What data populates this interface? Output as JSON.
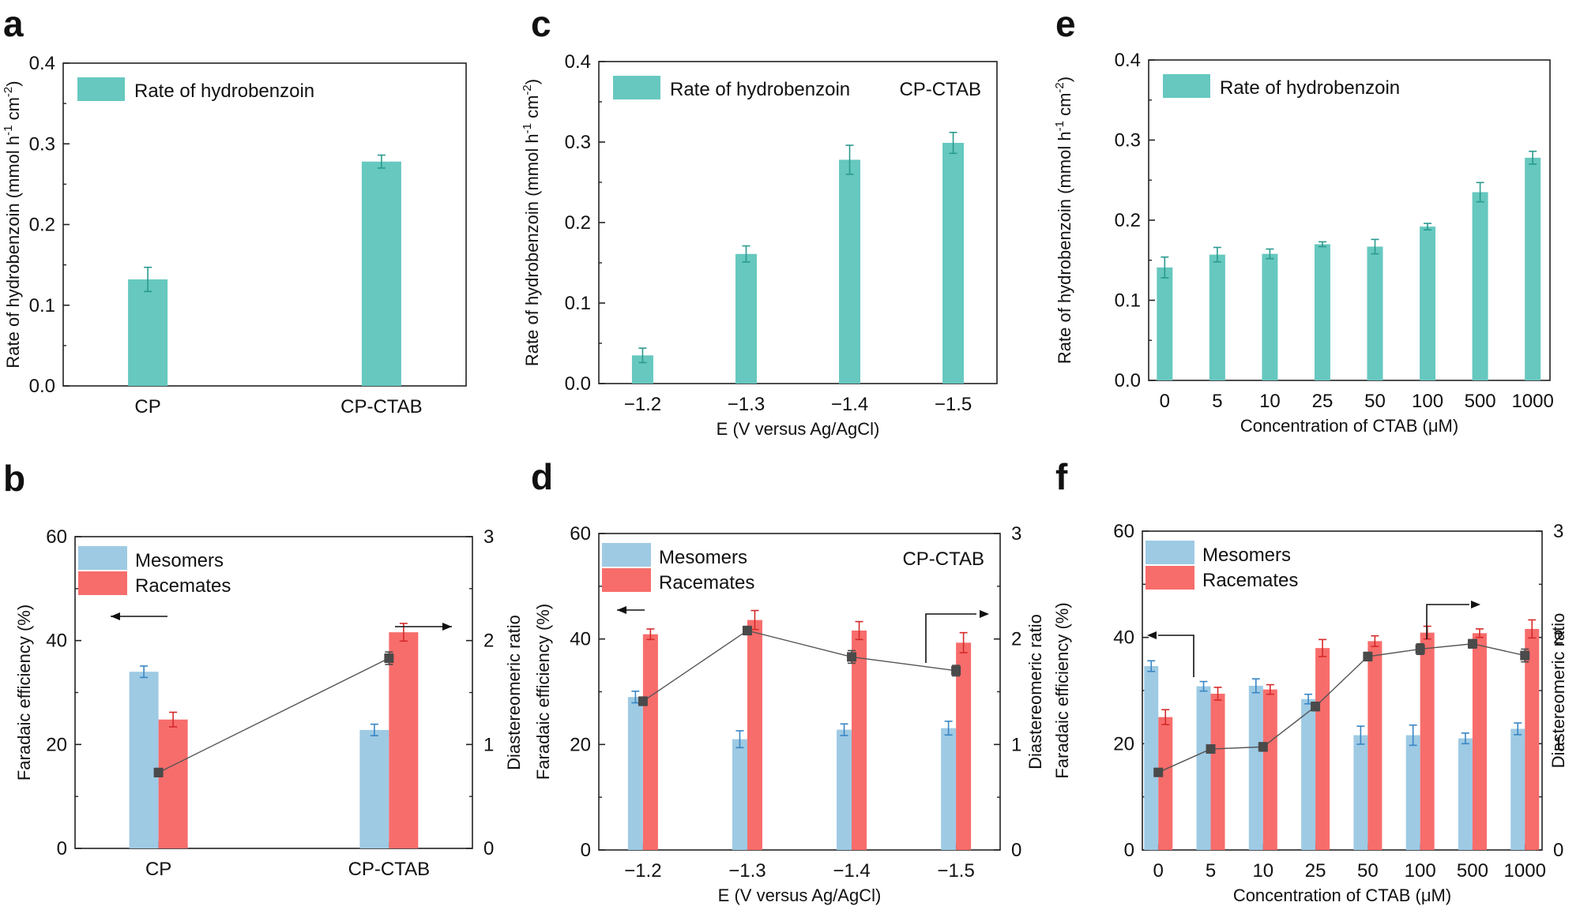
{
  "colors": {
    "teal": "#66c8bf",
    "teal_err": "#2a9a8e",
    "mesomer": "#9ecae4",
    "mesomer_err": "#3a86c4",
    "racemate": "#f76d6b",
    "racemate_err": "#d42a2a",
    "ratio_line": "#555555",
    "ratio_marker": "#4a4a4a"
  },
  "chart_data": [
    {
      "id": "a",
      "panel_label": "a",
      "type": "bar",
      "categories": [
        "CP",
        "CP-CTAB"
      ],
      "series": [
        {
          "name": "Rate of hydrobenzoin",
          "values": [
            0.132,
            0.278
          ],
          "errors": [
            0.015,
            0.008
          ]
        }
      ],
      "xlabel": "",
      "ylabel": "Rate of hydrobenzoin (mmol h⁻¹ cm⁻²)",
      "ylim": [
        0,
        0.4
      ],
      "yticks": [
        "0.0",
        "0.1",
        "0.2",
        "0.3",
        "0.4"
      ],
      "note": ""
    },
    {
      "id": "c",
      "panel_label": "c",
      "type": "bar",
      "categories": [
        "−1.2",
        "−1.3",
        "−1.4",
        "−1.5"
      ],
      "series": [
        {
          "name": "Rate of hydrobenzoin",
          "values": [
            0.035,
            0.161,
            0.278,
            0.299
          ],
          "errors": [
            0.009,
            0.01,
            0.018,
            0.013
          ]
        }
      ],
      "xlabel": "E (V versus Ag/AgCl)",
      "ylabel": "Rate of hydrobenzoin (mmol h⁻¹ cm⁻²)",
      "ylim": [
        0,
        0.4
      ],
      "yticks": [
        "0.0",
        "0.1",
        "0.2",
        "0.3",
        "0.4"
      ],
      "note": "CP-CTAB"
    },
    {
      "id": "e",
      "panel_label": "e",
      "type": "bar",
      "categories": [
        "0",
        "5",
        "10",
        "25",
        "50",
        "100",
        "500",
        "1000"
      ],
      "series": [
        {
          "name": "Rate of hydrobenzoin",
          "values": [
            0.141,
            0.157,
            0.158,
            0.17,
            0.167,
            0.192,
            0.235,
            0.278
          ],
          "errors": [
            0.013,
            0.009,
            0.006,
            0.003,
            0.009,
            0.004,
            0.012,
            0.008
          ]
        }
      ],
      "xlabel": "Concentration of CTAB (μM)",
      "ylabel": "Rate of hydrobenzoin (mmol h⁻¹ cm⁻²)",
      "ylim": [
        0,
        0.4
      ],
      "yticks": [
        "0.0",
        "0.1",
        "0.2",
        "0.3",
        "0.4"
      ],
      "note": ""
    },
    {
      "id": "b",
      "panel_label": "b",
      "type": "bar",
      "categories": [
        "CP",
        "CP-CTAB"
      ],
      "series": [
        {
          "name": "Mesomers",
          "values": [
            34.0,
            22.8
          ],
          "errors": [
            1.1,
            1.1
          ]
        },
        {
          "name": "Racemates",
          "values": [
            24.8,
            41.6
          ],
          "errors": [
            1.4,
            1.7
          ]
        }
      ],
      "ratio": {
        "name": "Diastereomeric ratio",
        "values": [
          0.73,
          1.83
        ],
        "errors": [
          0.04,
          0.06
        ]
      },
      "xlabel": "",
      "ylabel": "Faradaic efficiency (%)",
      "y2label": "Diastereomeric ratio",
      "ylim": [
        0,
        60
      ],
      "y2lim": [
        0,
        3
      ],
      "yticks": [
        "0",
        "20",
        "40",
        "60"
      ],
      "y2ticks": [
        "0",
        "1",
        "2",
        "3"
      ],
      "note": ""
    },
    {
      "id": "d",
      "panel_label": "d",
      "type": "bar",
      "categories": [
        "−1.2",
        "−1.3",
        "−1.4",
        "−1.5"
      ],
      "series": [
        {
          "name": "Mesomers",
          "values": [
            29.0,
            21.0,
            22.8,
            23.1
          ],
          "errors": [
            1.1,
            1.6,
            1.1,
            1.3
          ]
        },
        {
          "name": "Racemates",
          "values": [
            40.9,
            43.6,
            41.6,
            39.3
          ],
          "errors": [
            1.0,
            1.8,
            1.7,
            1.9
          ]
        }
      ],
      "ratio": {
        "name": "Diastereomeric ratio",
        "values": [
          1.41,
          2.08,
          1.83,
          1.7
        ],
        "errors": [
          0.04,
          0.04,
          0.06,
          0.05
        ]
      },
      "xlabel": "E (V versus Ag/AgCl)",
      "ylabel": "Faradaic efficiency (%)",
      "y2label": "Diastereomeric ratio",
      "ylim": [
        0,
        60
      ],
      "y2lim": [
        0,
        3
      ],
      "yticks": [
        "0",
        "20",
        "40",
        "60"
      ],
      "y2ticks": [
        "0",
        "1",
        "2",
        "3"
      ],
      "note": "CP-CTAB"
    },
    {
      "id": "f",
      "panel_label": "f",
      "type": "bar",
      "categories": [
        "0",
        "5",
        "10",
        "25",
        "50",
        "100",
        "500",
        "1000"
      ],
      "series": [
        {
          "name": "Mesomers",
          "values": [
            34.6,
            30.8,
            30.9,
            28.4,
            21.6,
            21.6,
            21.0,
            22.8
          ],
          "errors": [
            1.0,
            0.9,
            1.3,
            0.9,
            1.7,
            1.9,
            1.0,
            1.1
          ]
        },
        {
          "name": "Racemates",
          "values": [
            25.0,
            29.4,
            30.2,
            38.0,
            39.3,
            40.9,
            40.8,
            41.6
          ],
          "errors": [
            1.4,
            1.2,
            0.9,
            1.6,
            1.0,
            1.2,
            0.8,
            1.7
          ]
        }
      ],
      "ratio": {
        "name": "Diastereomeric ratio",
        "values": [
          0.73,
          0.95,
          0.97,
          1.35,
          1.82,
          1.89,
          1.94,
          1.83
        ],
        "errors": [
          0.03,
          0.03,
          0.04,
          0.04,
          0.04,
          0.05,
          0.04,
          0.06
        ]
      },
      "xlabel": "Concentration of CTAB (μM)",
      "ylabel": "Faradaic efficiency (%)",
      "y2label": "Diastereomeric ratio",
      "ylim": [
        0,
        60
      ],
      "y2lim": [
        0,
        3
      ],
      "yticks": [
        "0",
        "20",
        "40",
        "60"
      ],
      "y2ticks": [
        "0",
        "1",
        "2",
        "3"
      ],
      "note": ""
    }
  ]
}
